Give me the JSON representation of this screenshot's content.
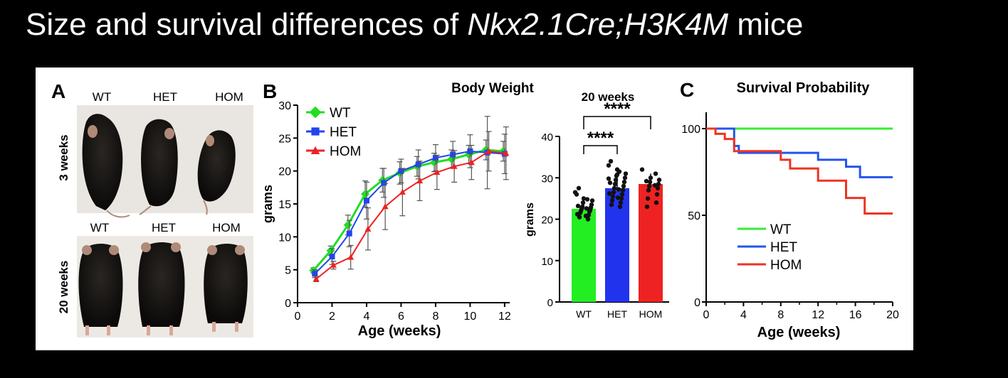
{
  "slide": {
    "title_pre": "Size and survival differences of ",
    "title_italic": "Nkx2.1Cre;H3K4M",
    "title_post": " mice"
  },
  "panel_a": {
    "letter": "A",
    "col_labels_top": [
      "WT",
      "HET",
      "HOM"
    ],
    "col_labels_bottom": [
      "WT",
      "HET",
      "HOM"
    ],
    "row_labels": [
      "3 weeks",
      "20 weeks"
    ]
  },
  "chart_data": [
    {
      "panel": "B",
      "type": "line",
      "title": "Body Weight",
      "xlabel": "Age (weeks)",
      "ylabel": "grams",
      "xlim": [
        0,
        12.5
      ],
      "ylim": [
        0,
        30
      ],
      "xticks": [
        0,
        2,
        4,
        6,
        8,
        10,
        12
      ],
      "yticks": [
        0,
        5,
        10,
        15,
        20,
        25,
        30
      ],
      "legend": "top-left",
      "x": [
        1,
        2,
        3,
        4,
        5,
        6,
        7,
        8,
        9,
        10,
        11,
        12
      ],
      "series": [
        {
          "name": "WT",
          "color": "#22dd22",
          "marker": "diamond",
          "values": [
            4.9,
            7.9,
            11.8,
            16.5,
            18.6,
            19.7,
            20.7,
            21.3,
            21.8,
            22.5,
            23.2,
            23.0
          ],
          "err": [
            0.4,
            0.7,
            1.5,
            2.0,
            1.8,
            1.7,
            1.5,
            1.4,
            1.4,
            1.4,
            1.5,
            1.5
          ]
        },
        {
          "name": "HET",
          "color": "#2244ee",
          "marker": "square",
          "values": [
            4.4,
            7.0,
            10.5,
            15.5,
            18.2,
            20.0,
            21.0,
            22.0,
            22.5,
            23.0,
            22.8,
            22.6
          ],
          "err": [
            0.6,
            1.2,
            2.0,
            2.8,
            2.2,
            1.8,
            2.2,
            2.0,
            2.0,
            2.5,
            5.5,
            3.0
          ]
        },
        {
          "name": "HOM",
          "color": "#ee2222",
          "marker": "triangle",
          "values": [
            3.6,
            5.7,
            6.9,
            11.2,
            14.6,
            16.8,
            18.5,
            19.8,
            20.7,
            21.3,
            23.0,
            22.7
          ],
          "err": [
            0.4,
            0.6,
            1.8,
            3.2,
            3.5,
            3.6,
            3.0,
            2.6,
            2.4,
            2.6,
            3.0,
            4.0
          ]
        }
      ]
    },
    {
      "panel": "B",
      "type": "bar",
      "title": "20 weeks",
      "ylabel": "grams",
      "ylim": [
        0,
        40
      ],
      "yticks": [
        0,
        10,
        20,
        30,
        40
      ],
      "categories": [
        "WT",
        "HET",
        "HOM"
      ],
      "values": [
        22.5,
        27.5,
        28.5
      ],
      "colors": [
        "#22ee22",
        "#2233ee",
        "#ee2222"
      ],
      "points": [
        [
          26.5,
          25.0,
          24.5,
          24.0,
          23.5,
          23.0,
          22.8,
          22.5,
          22.2,
          22.0,
          21.8,
          21.5,
          21.0,
          20.5,
          20.0,
          27.5,
          24.8,
          23.2,
          22.6,
          21.2,
          20.8,
          26.0
        ],
        [
          33.0,
          32.0,
          31.0,
          30.5,
          30.0,
          29.5,
          29.0,
          28.5,
          28.0,
          27.5,
          27.0,
          26.5,
          26.0,
          25.5,
          25.0,
          24.5,
          24.0,
          23.5,
          23.0,
          34.0,
          31.5,
          28.8,
          27.2,
          26.2,
          25.2,
          29.8,
          30.8
        ],
        [
          32.0,
          30.0,
          29.5,
          29.0,
          28.5,
          28.0,
          27.5,
          27.0,
          26.0,
          25.0,
          24.0,
          23.0,
          31.0,
          29.2,
          28.2
        ]
      ],
      "significance": [
        {
          "from": "WT",
          "to": "HET",
          "label": "****"
        },
        {
          "from": "WT",
          "to": "HOM",
          "label": "****"
        }
      ]
    },
    {
      "panel": "C",
      "type": "line",
      "title": "Survival Probability",
      "xlabel": "Age (weeks)",
      "ylabel": "",
      "xlim": [
        0,
        20
      ],
      "ylim": [
        0,
        110
      ],
      "xticks": [
        0,
        4,
        8,
        12,
        16,
        20
      ],
      "yticks": [
        0,
        50,
        100
      ],
      "legend": "bottom-left",
      "series": [
        {
          "name": "WT",
          "color": "#33ee33",
          "x": [
            0,
            20
          ],
          "values": [
            100,
            100
          ]
        },
        {
          "name": "HET",
          "color": "#2255ee",
          "x": [
            0,
            3,
            3,
            3.5,
            3.5,
            12,
            12,
            15,
            15,
            16.5,
            16.5,
            20
          ],
          "values": [
            100,
            100,
            90,
            90,
            86,
            86,
            82,
            82,
            78,
            78,
            72,
            72
          ]
        },
        {
          "name": "HOM",
          "color": "#ee3322",
          "x": [
            0,
            1,
            1,
            2,
            2,
            3,
            3,
            8,
            8,
            9,
            9,
            12,
            12,
            15,
            15,
            17,
            17,
            20
          ],
          "values": [
            100,
            100,
            97,
            97,
            94,
            94,
            87,
            87,
            82,
            82,
            77,
            77,
            70,
            70,
            60,
            60,
            51,
            51
          ]
        }
      ]
    }
  ]
}
